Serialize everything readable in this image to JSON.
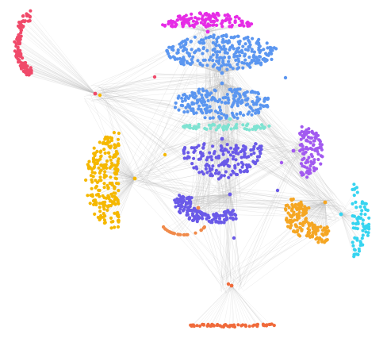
{
  "figure": {
    "type": "network-graph",
    "background_color": "#ffffff",
    "edge_color": "#bdbdbd",
    "labels_visible": false
  },
  "communities": [
    {
      "id": "magenta-cluster",
      "color": "#e62ce6",
      "shape": "half-disc"
    },
    {
      "id": "light-blue-upper-cluster",
      "color": "#5b96f0",
      "shape": "oval"
    },
    {
      "id": "light-blue-middle-cluster",
      "color": "#5b96f0",
      "shape": "oval"
    },
    {
      "id": "aqua-band-cluster",
      "color": "#7fe3d2",
      "shape": "band"
    },
    {
      "id": "indigo-upper-cluster",
      "color": "#6a5ae8",
      "shape": "half-disc"
    },
    {
      "id": "indigo-lower-cluster",
      "color": "#6a5ae8",
      "shape": "crescent"
    },
    {
      "id": "red-pink-cluster",
      "color": "#f04a6a",
      "shape": "fan"
    },
    {
      "id": "yellow-cluster",
      "color": "#f5b800",
      "shape": "half-disc"
    },
    {
      "id": "purple-cluster",
      "color": "#a25af0",
      "shape": "half-disc"
    },
    {
      "id": "orange-cluster",
      "color": "#f5a623",
      "shape": "crescent"
    },
    {
      "id": "cyan-cluster",
      "color": "#36d4f0",
      "shape": "half-disc"
    },
    {
      "id": "coral-star-cluster",
      "color": "#f06a3a",
      "shape": "star"
    },
    {
      "id": "coral-small-cluster",
      "color": "#f08a4a",
      "shape": "arc"
    }
  ]
}
